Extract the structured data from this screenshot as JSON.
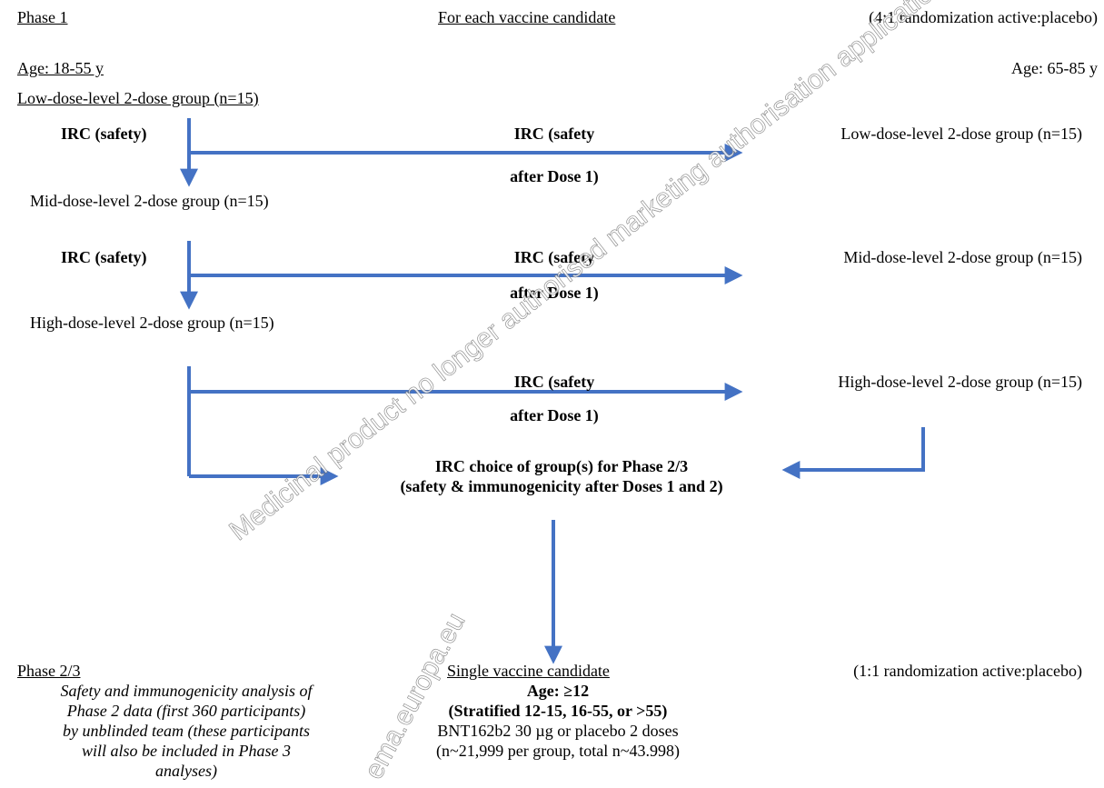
{
  "colors": {
    "arrow": "#4472C4",
    "text": "#000000",
    "background": "#FFFFFF"
  },
  "phase1": {
    "heading": "Phase 1",
    "center_heading": "For each vaccine candidate",
    "randomization": "(4:1 randomization active:placebo)",
    "age_left": "Age: 18-55 y",
    "age_right": "Age: 65-85 y",
    "low_left": "Low-dose-level 2-dose group (n=15)",
    "mid_left": "Mid-dose-level 2-dose group (n=15)",
    "high_left": "High-dose-level 2-dose group (n=15)",
    "low_right": "Low-dose-level 2-dose group (n=15)",
    "mid_right": "Mid-dose-level 2-dose group (n=15)",
    "high_right": "High-dose-level 2-dose group (n=15)",
    "irc_safety_1": "IRC (safety)",
    "irc_safety_2": "IRC (safety)",
    "irc_dose1_1": {
      "line1": "IRC (safety",
      "line2": "after Dose 1)"
    },
    "irc_dose1_2": {
      "line1": "IRC (safety",
      "line2": "after Dose 1)"
    },
    "irc_dose1_3": {
      "line1": "IRC (safety",
      "line2": "after Dose 1)"
    },
    "irc_choice": {
      "line1": "IRC choice of group(s) for Phase 2/3",
      "line2": "(safety & immunogenicity after Doses 1 and 2)"
    }
  },
  "phase23": {
    "heading": "Phase 2/3",
    "center_heading": "Single vaccine candidate",
    "randomization": "(1:1 randomization active:placebo)",
    "analysis_lines": [
      "Safety and immunogenicity analysis of",
      "Phase 2 data (first 360 participants)",
      "by unblinded team (these participants",
      "will also be included in Phase 3",
      "analyses)"
    ],
    "age": "Age: ≥12",
    "stratified": "(Stratified 12-15, 16-55, or >55)",
    "dose": "BNT162b2 30 µg or placebo 2 doses",
    "n": "(n~21,999 per group, total n~43.998)"
  },
  "watermark": {
    "line1": "ema.europa.eu",
    "line2": "Medicinal product no longer authorised marketing authorisation application and any extensions or variations thereof"
  }
}
